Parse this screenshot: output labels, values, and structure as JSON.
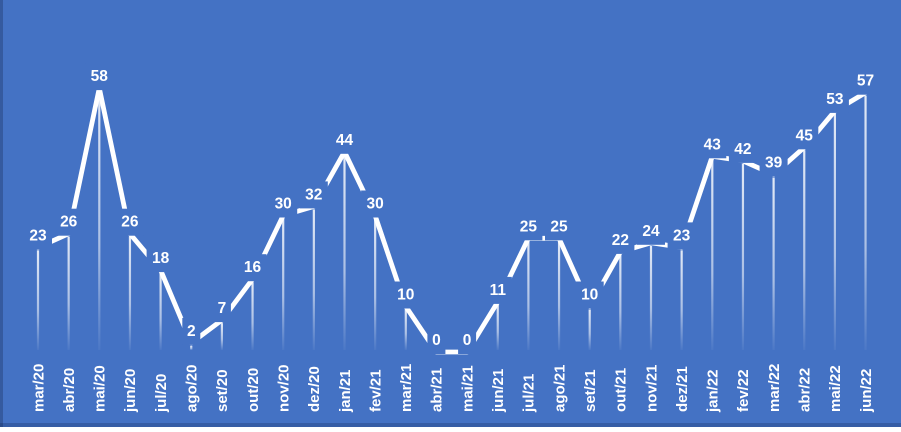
{
  "page": {
    "background_color": "#4472C4",
    "edge_shade_color": "rgba(13,29,66,0.28)"
  },
  "chart_data": {
    "type": "line",
    "title": "",
    "xlabel": "",
    "ylabel": "",
    "categories": [
      "mar/20",
      "abr/20",
      "mai/20",
      "jun/20",
      "jul/20",
      "ago/20",
      "set/20",
      "out/20",
      "nov/20",
      "dez/20",
      "jan/21",
      "fev/21",
      "mar/21",
      "abr/21",
      "mai/21",
      "jun/21",
      "jul/21",
      "ago/21",
      "set/21",
      "out/21",
      "nov/21",
      "dez/21",
      "jan/22",
      "fev/22",
      "mar/22",
      "abr/22",
      "mai/22",
      "jun/22"
    ],
    "values": [
      23,
      26,
      58,
      26,
      18,
      2,
      7,
      16,
      30,
      32,
      44,
      30,
      10,
      0,
      0,
      11,
      25,
      25,
      10,
      22,
      24,
      23,
      43,
      42,
      39,
      45,
      53,
      57
    ],
    "ylim": [
      0,
      60
    ],
    "grid": false,
    "legend": "none",
    "axis_lines": "none",
    "line_color": "#FFFFFF",
    "label_color": "#FFFFFF",
    "background_color": "#4472C4",
    "data_labels_position": "above",
    "drop_lines": true,
    "x_tick_rotation": -90
  }
}
